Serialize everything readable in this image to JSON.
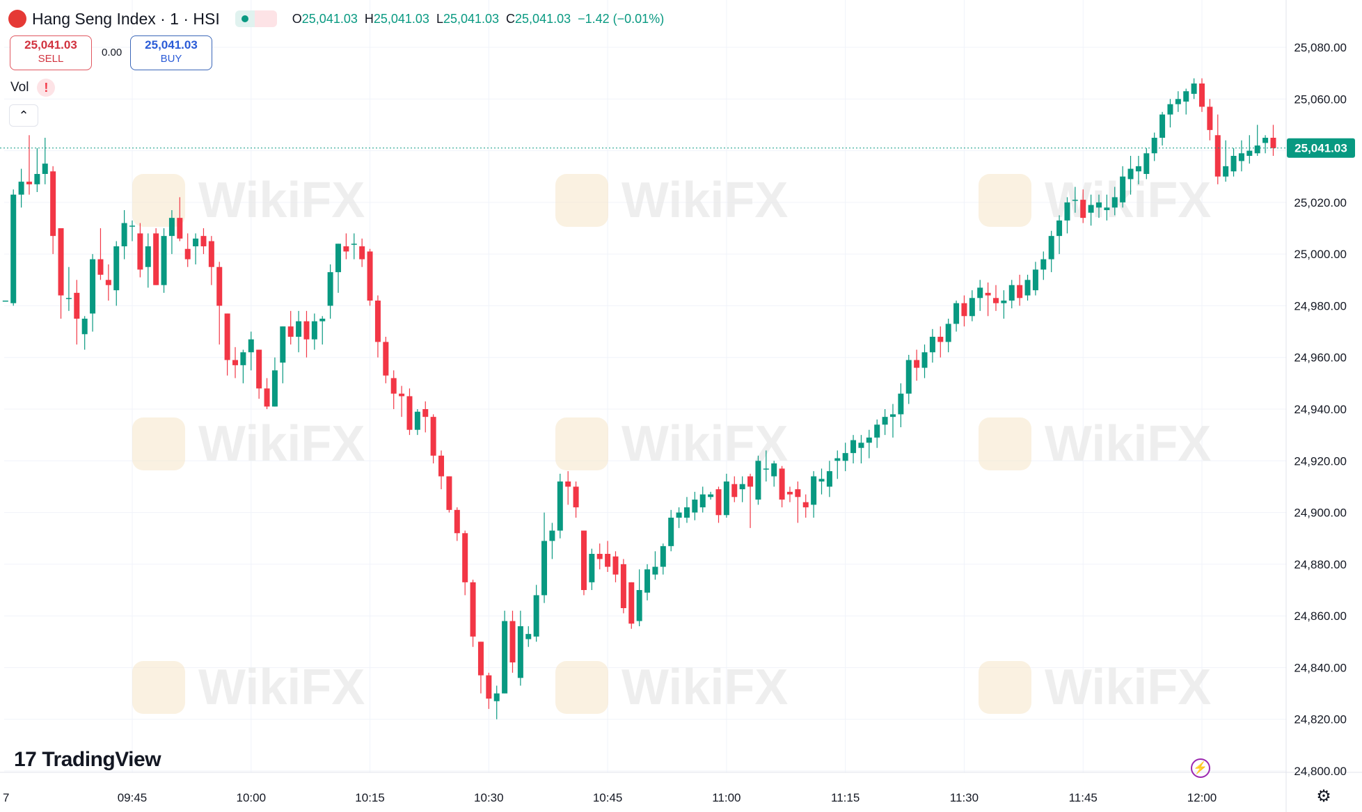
{
  "header": {
    "symbol_title": "Hang Seng Index · 1 · HSI",
    "logo_glyph": "个",
    "wave_glyph": "≈",
    "ohlc": [
      {
        "key": "O",
        "value": "25,041.03"
      },
      {
        "key": "H",
        "value": "25,041.03"
      },
      {
        "key": "L",
        "value": "25,041.03"
      },
      {
        "key": "C",
        "value": "25,041.03"
      },
      {
        "key": "",
        "value": "−1.42 (−0.01%)"
      }
    ]
  },
  "trade": {
    "sell_price": "25,041.03",
    "sell_label": "SELL",
    "spread": "0.00",
    "buy_price": "25,041.03",
    "buy_label": "BUY"
  },
  "vol_label": "Vol",
  "vol_warning": "!",
  "collapse_glyph": "⌃",
  "brand": "TradingView",
  "brand_mark": "17",
  "watermark_text": "WikiFX",
  "bolt_glyph": "⚡",
  "settings_glyph": "⚙",
  "colors": {
    "up": "#089981",
    "down": "#f23645",
    "grid": "#f0f3fa",
    "axis_text": "#131722",
    "last_price_bg": "#089981",
    "watermark": "#f5e6c8"
  },
  "chart_data": {
    "type": "candlestick",
    "title": "Hang Seng Index · 1 · HSI",
    "interval_minutes": 1,
    "last_price": 25041.03,
    "last_price_label": "25,041.03",
    "ylim": [
      24794,
      25092
    ],
    "y_ticks": [
      "25,080.00",
      "25,060.00",
      "25,040.00",
      "25,020.00",
      "25,000.00",
      "24,980.00",
      "24,960.00",
      "24,940.00",
      "24,920.00",
      "24,900.00",
      "24,880.00",
      "24,860.00",
      "24,840.00",
      "24,820.00",
      "24,800.00"
    ],
    "y_tick_values": [
      25080,
      25060,
      25040,
      25020,
      25000,
      24980,
      24960,
      24940,
      24920,
      24900,
      24880,
      24860,
      24840,
      24820,
      24800
    ],
    "x_ticks": [
      "7",
      "09:45",
      "10:00",
      "10:15",
      "10:30",
      "10:45",
      "11:00",
      "11:15",
      "11:30",
      "11:45",
      "12:00"
    ],
    "x_tick_minutes": [
      -16,
      15,
      30,
      45,
      60,
      75,
      90,
      105,
      120,
      135,
      150
    ],
    "time_axis_note": "minute index counted from 09:30",
    "grid": true,
    "candles": [
      [
        -1,
        24982,
        24982,
        24982,
        24982
      ],
      [
        0,
        24981,
        25025,
        24980,
        25023
      ],
      [
        1,
        25023,
        25033,
        25018,
        25028
      ],
      [
        2,
        25028,
        25046,
        25023,
        25027
      ],
      [
        3,
        25027,
        25041,
        25024,
        25031
      ],
      [
        4,
        25031,
        25045,
        25027,
        25035
      ],
      [
        5,
        25032,
        25034,
        25000,
        25007
      ],
      [
        6,
        25010,
        25010,
        24975,
        24984
      ],
      [
        7,
        24983,
        24995,
        24978,
        24983
      ],
      [
        8,
        24985,
        24990,
        24965,
        24975
      ],
      [
        9,
        24969,
        24976,
        24963,
        24975
      ],
      [
        10,
        24977,
        25000,
        24970,
        24998
      ],
      [
        11,
        24998,
        25010,
        24990,
        24992
      ],
      [
        12,
        24990,
        24996,
        24982,
        24988
      ],
      [
        13,
        24986,
        25005,
        24980,
        25003
      ],
      [
        14,
        25003,
        25017,
        24998,
        25012
      ],
      [
        15,
        25011,
        25013,
        25005,
        25011
      ],
      [
        16,
        25008,
        25012,
        24991,
        24994
      ],
      [
        17,
        24995,
        25008,
        24987,
        25003
      ],
      [
        18,
        25008,
        25010,
        24988,
        24988
      ],
      [
        19,
        24988,
        25010,
        24985,
        25007
      ],
      [
        20,
        25007,
        25017,
        25000,
        25014
      ],
      [
        21,
        25014,
        25022,
        25005,
        25006
      ],
      [
        22,
        25002,
        25008,
        24995,
        24998
      ],
      [
        23,
        25003,
        25008,
        24996,
        25006
      ],
      [
        24,
        25007,
        25010,
        25000,
        25003
      ],
      [
        25,
        25005,
        25007,
        24988,
        24995
      ],
      [
        26,
        24995,
        24997,
        24965,
        24980
      ],
      [
        27,
        24977,
        24977,
        24953,
        24959
      ],
      [
        28,
        24959,
        24964,
        24952,
        24957
      ],
      [
        29,
        24957,
        24963,
        24950,
        24962
      ],
      [
        30,
        24962,
        24970,
        24955,
        24967
      ],
      [
        31,
        24963,
        24963,
        24944,
        24948
      ],
      [
        32,
        24948,
        24952,
        24940,
        24941
      ],
      [
        33,
        24941,
        24960,
        24941,
        24955
      ],
      [
        34,
        24958,
        24972,
        24950,
        24972
      ],
      [
        35,
        24972,
        24978,
        24965,
        24968
      ],
      [
        36,
        24968,
        24978,
        24962,
        24974
      ],
      [
        37,
        24974,
        24978,
        24960,
        24967
      ],
      [
        38,
        24967,
        24977,
        24963,
        24974
      ],
      [
        39,
        24974,
        24976,
        24965,
        24975
      ],
      [
        40,
        24980,
        24996,
        24975,
        24993
      ],
      [
        41,
        24993,
        25004,
        24985,
        25004
      ],
      [
        42,
        25003,
        25008,
        24998,
        25001
      ],
      [
        43,
        25004,
        25008,
        24998,
        25004
      ],
      [
        44,
        25003,
        25006,
        24995,
        24998
      ],
      [
        45,
        25001,
        25002,
        24980,
        24982
      ],
      [
        46,
        24982,
        24984,
        24960,
        24966
      ],
      [
        47,
        24966,
        24968,
        24950,
        24953
      ],
      [
        48,
        24952,
        24955,
        24940,
        24946
      ],
      [
        49,
        24946,
        24949,
        24937,
        24945
      ],
      [
        50,
        24945,
        24948,
        24930,
        24932
      ],
      [
        51,
        24932,
        24940,
        24930,
        24939
      ],
      [
        52,
        24940,
        24943,
        24931,
        24937
      ],
      [
        53,
        24937,
        24938,
        24919,
        24922
      ],
      [
        54,
        24922,
        24924,
        24909,
        24914
      ],
      [
        55,
        24914,
        24914,
        24900,
        24901
      ],
      [
        56,
        24901,
        24902,
        24889,
        24892
      ],
      [
        57,
        24892,
        24893,
        24868,
        24873
      ],
      [
        58,
        24873,
        24874,
        24848,
        24852
      ],
      [
        59,
        24850,
        24850,
        24830,
        24837
      ],
      [
        60,
        24837,
        24838,
        24824,
        24828
      ],
      [
        61,
        24827,
        24833,
        24820,
        24830
      ],
      [
        62,
        24830,
        24862,
        24830,
        24858
      ],
      [
        63,
        24858,
        24862,
        24838,
        24842
      ],
      [
        64,
        24836,
        24862,
        24833,
        24856
      ],
      [
        65,
        24851,
        24856,
        24848,
        24853
      ],
      [
        66,
        24852,
        24872,
        24850,
        24868
      ],
      [
        67,
        24868,
        24900,
        24865,
        24889
      ],
      [
        68,
        24889,
        24896,
        24882,
        24893
      ],
      [
        69,
        24893,
        24915,
        24890,
        24912
      ],
      [
        70,
        24912,
        24916,
        24903,
        24910
      ],
      [
        71,
        24910,
        24912,
        24898,
        24902
      ],
      [
        72,
        24893,
        24893,
        24868,
        24870
      ],
      [
        73,
        24873,
        24886,
        24870,
        24884
      ],
      [
        74,
        24884,
        24888,
        24878,
        24882
      ],
      [
        75,
        24884,
        24889,
        24877,
        24879
      ],
      [
        76,
        24883,
        24885,
        24873,
        24876
      ],
      [
        77,
        24880,
        24882,
        24861,
        24863
      ],
      [
        78,
        24873,
        24873,
        24855,
        24857
      ],
      [
        79,
        24858,
        24878,
        24856,
        24870
      ],
      [
        80,
        24869,
        24880,
        24866,
        24878
      ],
      [
        81,
        24876,
        24885,
        24874,
        24879
      ],
      [
        82,
        24879,
        24888,
        24876,
        24887
      ],
      [
        83,
        24887,
        24901,
        24885,
        24898
      ],
      [
        84,
        24898,
        24902,
        24894,
        24900
      ],
      [
        85,
        24898,
        24906,
        24896,
        24902
      ],
      [
        86,
        24900,
        24908,
        24897,
        24905
      ],
      [
        87,
        24902,
        24910,
        24900,
        24907
      ],
      [
        88,
        24906,
        24908,
        24905,
        24907
      ],
      [
        89,
        24909,
        24910,
        24896,
        24899
      ],
      [
        90,
        24899,
        24915,
        24898,
        24912
      ],
      [
        91,
        24911,
        24914,
        24904,
        24906
      ],
      [
        92,
        24909,
        24914,
        24904,
        24911
      ],
      [
        93,
        24914,
        24915,
        24894,
        24910
      ],
      [
        94,
        24905,
        24922,
        24903,
        24920
      ],
      [
        95,
        24917,
        24924,
        24912,
        24917
      ],
      [
        96,
        24914,
        24920,
        24910,
        24919
      ],
      [
        97,
        24917,
        24918,
        24902,
        24905
      ],
      [
        98,
        24908,
        24910,
        24904,
        24907
      ],
      [
        99,
        24909,
        24912,
        24896,
        24906
      ],
      [
        100,
        24904,
        24907,
        24898,
        24902
      ],
      [
        101,
        24903,
        24916,
        24898,
        24914
      ],
      [
        102,
        24912,
        24917,
        24907,
        24913
      ],
      [
        103,
        24910,
        24920,
        24906,
        24916
      ],
      [
        104,
        24920,
        24924,
        24913,
        24921
      ],
      [
        105,
        24920,
        24927,
        24916,
        24923
      ],
      [
        106,
        24923,
        24930,
        24919,
        24928
      ],
      [
        107,
        24925,
        24930,
        24919,
        24927
      ],
      [
        108,
        24927,
        24932,
        24921,
        24929
      ],
      [
        109,
        24929,
        24936,
        24925,
        24934
      ],
      [
        110,
        24934,
        24940,
        24930,
        24937
      ],
      [
        111,
        24937,
        24942,
        24929,
        24938
      ],
      [
        112,
        24938,
        24950,
        24933,
        24946
      ],
      [
        113,
        24946,
        24961,
        24942,
        24959
      ],
      [
        114,
        24959,
        24963,
        24951,
        24956
      ],
      [
        115,
        24956,
        24965,
        24952,
        24962
      ],
      [
        116,
        24962,
        24971,
        24958,
        24968
      ],
      [
        117,
        24968,
        24972,
        24960,
        24966
      ],
      [
        118,
        24966,
        24975,
        24962,
        24973
      ],
      [
        119,
        24973,
        24982,
        24970,
        24981
      ],
      [
        120,
        24981,
        24984,
        24972,
        24976
      ],
      [
        121,
        24976,
        24986,
        24974,
        24983
      ],
      [
        122,
        24983,
        24990,
        24978,
        24987
      ],
      [
        123,
        24985,
        24989,
        24976,
        24984
      ],
      [
        124,
        24983,
        24988,
        24978,
        24981
      ],
      [
        125,
        24981,
        24986,
        24975,
        24982
      ],
      [
        126,
        24982,
        24990,
        24979,
        24988
      ],
      [
        127,
        24988,
        24992,
        24980,
        24983
      ],
      [
        128,
        24984,
        24992,
        24982,
        24990
      ],
      [
        129,
        24986,
        24997,
        24984,
        24994
      ],
      [
        130,
        24994,
        25001,
        24990,
        24998
      ],
      [
        131,
        24998,
        25009,
        24993,
        25007
      ],
      [
        132,
        25007,
        25015,
        25000,
        25013
      ],
      [
        133,
        25013,
        25022,
        25008,
        25020
      ],
      [
        134,
        25021,
        25026,
        25016,
        25021
      ],
      [
        135,
        25021,
        25025,
        25012,
        25014
      ],
      [
        136,
        25016,
        25023,
        25011,
        25019
      ],
      [
        137,
        25018,
        25023,
        25014,
        25020
      ],
      [
        138,
        25017,
        25023,
        25013,
        25018
      ],
      [
        139,
        25018,
        25026,
        25015,
        25022
      ],
      [
        140,
        25020,
        25034,
        25018,
        25030
      ],
      [
        141,
        25029,
        25038,
        25023,
        25033
      ],
      [
        142,
        25032,
        25038,
        25027,
        25034
      ],
      [
        143,
        25031,
        25041,
        25029,
        25039
      ],
      [
        144,
        25039,
        25047,
        25036,
        25045
      ],
      [
        145,
        25045,
        25055,
        25042,
        25054
      ],
      [
        146,
        25054,
        25060,
        25049,
        25058
      ],
      [
        147,
        25058,
        25063,
        25055,
        25060
      ],
      [
        148,
        25059,
        25064,
        25054,
        25063
      ],
      [
        149,
        25062,
        25068,
        25060,
        25066
      ],
      [
        150,
        25066,
        25068,
        25055,
        25057
      ],
      [
        151,
        25057,
        25060,
        25044,
        25048
      ],
      [
        152,
        25046,
        25054,
        25027,
        25030
      ],
      [
        153,
        25030,
        25044,
        25028,
        25034
      ],
      [
        154,
        25032,
        25041,
        25030,
        25038
      ],
      [
        155,
        25036,
        25044,
        25032,
        25039
      ],
      [
        156,
        25038,
        25046,
        25035,
        25040
      ],
      [
        157,
        25039,
        25050,
        25038,
        25042
      ],
      [
        158,
        25043,
        25046,
        25039,
        25045
      ],
      [
        159,
        25045,
        25050,
        25038,
        25041
      ]
    ]
  }
}
